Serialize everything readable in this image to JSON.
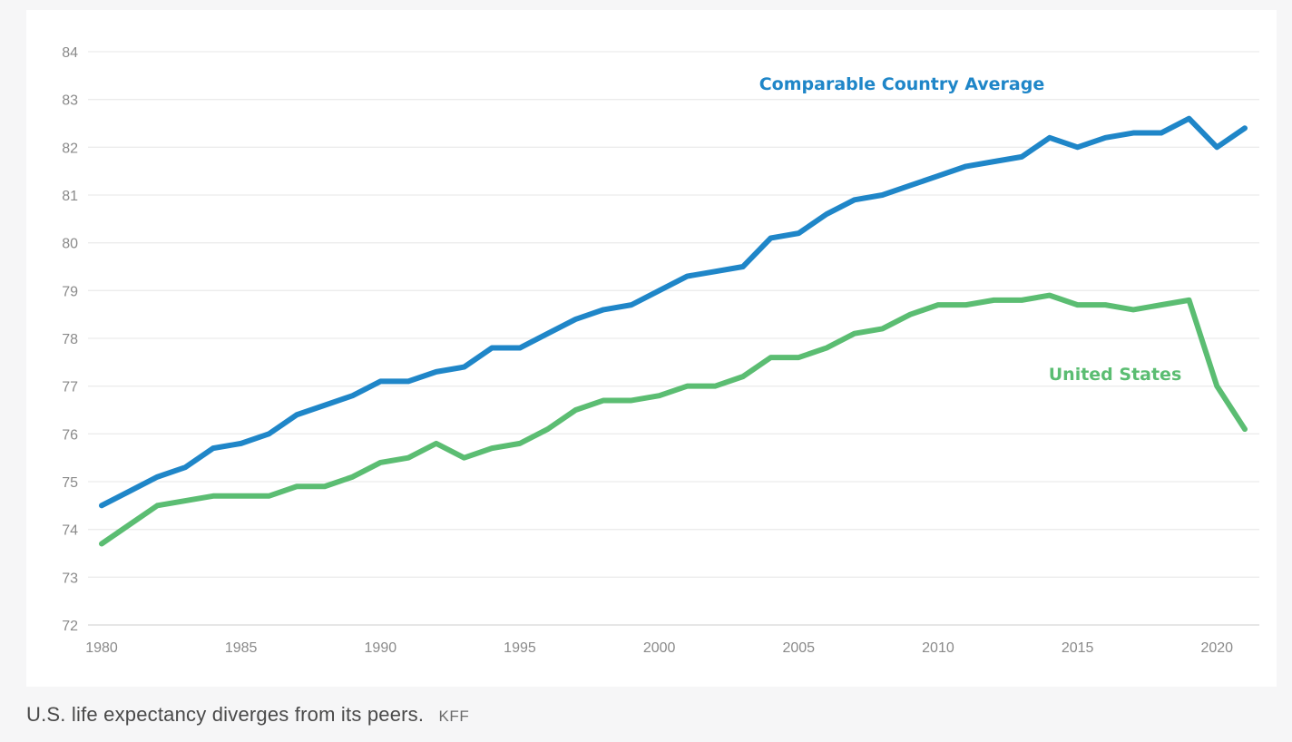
{
  "chart_data": {
    "type": "line",
    "title": "",
    "xlabel": "",
    "ylabel": "",
    "xlim": [
      1980,
      2021
    ],
    "ylim": [
      72,
      84
    ],
    "x_ticks": [
      1980,
      1985,
      1990,
      1995,
      2000,
      2005,
      2010,
      2015,
      2020
    ],
    "y_ticks": [
      72,
      73,
      74,
      75,
      76,
      77,
      78,
      79,
      80,
      81,
      82,
      83,
      84
    ],
    "grid": "horizontal",
    "x": [
      1980,
      1981,
      1982,
      1983,
      1984,
      1985,
      1986,
      1987,
      1988,
      1989,
      1990,
      1991,
      1992,
      1993,
      1994,
      1995,
      1996,
      1997,
      1998,
      1999,
      2000,
      2001,
      2002,
      2003,
      2004,
      2005,
      2006,
      2007,
      2008,
      2009,
      2010,
      2011,
      2012,
      2013,
      2014,
      2015,
      2016,
      2017,
      2018,
      2019,
      2020,
      2021
    ],
    "series": [
      {
        "name": "Comparable Country Average",
        "color": "#1f86c8",
        "label_position": "top-right",
        "values": [
          74.5,
          74.8,
          75.1,
          75.3,
          75.7,
          75.8,
          76.0,
          76.4,
          76.6,
          76.8,
          77.1,
          77.1,
          77.3,
          77.4,
          77.8,
          77.8,
          78.1,
          78.4,
          78.6,
          78.7,
          79.0,
          79.3,
          79.4,
          79.5,
          80.1,
          80.2,
          80.6,
          80.9,
          81.0,
          81.2,
          81.4,
          81.6,
          81.7,
          81.8,
          82.2,
          82.0,
          82.2,
          82.3,
          82.3,
          82.6,
          82.0,
          82.4
        ]
      },
      {
        "name": "United States",
        "color": "#5bbd72",
        "label_position": "right",
        "values": [
          73.7,
          74.1,
          74.5,
          74.6,
          74.7,
          74.7,
          74.7,
          74.9,
          74.9,
          75.1,
          75.4,
          75.5,
          75.8,
          75.5,
          75.7,
          75.8,
          76.1,
          76.5,
          76.7,
          76.7,
          76.8,
          77.0,
          77.0,
          77.2,
          77.6,
          77.6,
          77.8,
          78.1,
          78.2,
          78.5,
          78.7,
          78.7,
          78.8,
          78.8,
          78.9,
          78.7,
          78.7,
          78.6,
          78.7,
          78.8,
          77.0,
          76.1
        ]
      }
    ]
  },
  "caption": {
    "text": "U.S. life expectancy diverges from its peers.",
    "credit": "KFF"
  }
}
